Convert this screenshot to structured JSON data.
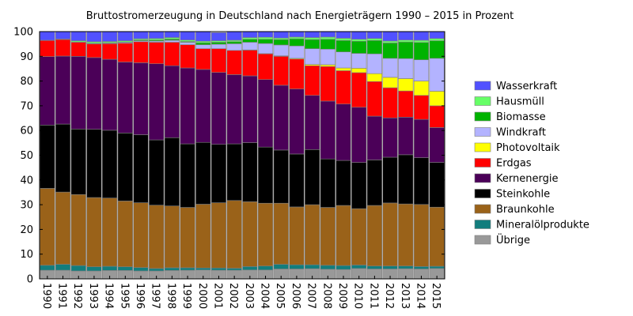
{
  "chart_data": {
    "type": "bar",
    "stacked": true,
    "title": "Bruttostromerzeugung in Deutschland nach Energieträgern 1990 – 2015 in Prozent",
    "xlabel": "",
    "ylabel": "",
    "ylim": [
      0,
      100
    ],
    "yticks": [
      0,
      10,
      20,
      30,
      40,
      50,
      60,
      70,
      80,
      90,
      100
    ],
    "grid": false,
    "legend_position": "right",
    "categories": [
      "1990",
      "1991",
      "1992",
      "1993",
      "1994",
      "1995",
      "1996",
      "1997",
      "1998",
      "1999",
      "2000",
      "2001",
      "2002",
      "2003",
      "2004",
      "2005",
      "2006",
      "2007",
      "2008",
      "2009",
      "2010",
      "2011",
      "2012",
      "2013",
      "2014",
      "2015"
    ],
    "series": [
      {
        "name": "Übrige",
        "color": "#999999",
        "values": [
          3.5,
          3.5,
          3.2,
          3.2,
          3.4,
          3.4,
          3.2,
          3.2,
          3.4,
          3.5,
          3.6,
          3.5,
          3.5,
          3.6,
          3.6,
          4.0,
          4.0,
          4.1,
          3.9,
          3.8,
          4.2,
          4.0,
          4.0,
          4.1,
          4.0,
          4.2
        ]
      },
      {
        "name": "Mineralölprodukte",
        "color": "#127d7d",
        "values": [
          2.0,
          2.4,
          2.2,
          1.7,
          1.7,
          1.5,
          1.4,
          1.0,
          1.1,
          1.0,
          0.8,
          0.9,
          0.8,
          1.4,
          1.6,
          1.9,
          1.7,
          1.6,
          1.6,
          1.6,
          1.4,
          1.2,
          1.2,
          1.1,
          1.0,
          0.9
        ]
      },
      {
        "name": "Braunkohle",
        "color": "#9a6219",
        "values": [
          31.1,
          29.2,
          28.7,
          28.0,
          27.6,
          26.6,
          26.2,
          25.6,
          25.0,
          24.4,
          25.8,
          26.4,
          27.4,
          26.2,
          25.4,
          24.7,
          23.4,
          24.3,
          23.4,
          24.3,
          22.8,
          24.5,
          25.5,
          25.1,
          25.1,
          23.9
        ]
      },
      {
        "name": "Steinkohle",
        "color": "#000000",
        "values": [
          25.6,
          27.5,
          26.5,
          27.6,
          27.4,
          27.5,
          27.5,
          26.4,
          27.6,
          25.7,
          25.0,
          23.6,
          22.9,
          23.9,
          22.7,
          21.5,
          21.4,
          22.3,
          19.6,
          18.2,
          18.7,
          18.4,
          18.5,
          19.9,
          18.9,
          18.1
        ]
      },
      {
        "name": "Kernenergie",
        "color": "#4b0058",
        "values": [
          27.7,
          27.5,
          29.4,
          29.0,
          28.7,
          28.7,
          29.1,
          30.8,
          29.1,
          30.7,
          29.5,
          29.1,
          28.0,
          27.0,
          27.3,
          26.2,
          26.3,
          21.9,
          23.4,
          22.8,
          22.3,
          17.7,
          15.9,
          15.2,
          15.5,
          14.1
        ]
      },
      {
        "name": "Erdgas",
        "color": "#ff0000",
        "values": [
          6.5,
          6.7,
          5.7,
          5.5,
          6.3,
          7.6,
          8.5,
          8.7,
          9.5,
          9.4,
          8.4,
          9.6,
          9.8,
          10.4,
          10.4,
          11.7,
          12.1,
          12.0,
          14.0,
          13.5,
          14.0,
          14.0,
          12.2,
          10.6,
          9.7,
          8.8
        ]
      },
      {
        "name": "Photovoltaik",
        "color": "#ffff00",
        "values": [
          0.0,
          0.0,
          0.0,
          0.0,
          0.0,
          0.0,
          0.0,
          0.0,
          0.0,
          0.0,
          0.0,
          0.0,
          0.0,
          0.1,
          0.1,
          0.2,
          0.3,
          0.5,
          0.7,
          1.1,
          1.8,
          3.2,
          4.2,
          5.0,
          5.8,
          5.9
        ]
      },
      {
        "name": "Windkraft",
        "color": "#b3b3ff",
        "values": [
          0.0,
          0.0,
          0.0,
          0.1,
          0.2,
          0.3,
          0.4,
          0.5,
          0.8,
          1.0,
          1.6,
          1.8,
          2.7,
          3.1,
          4.1,
          4.4,
          5.0,
          6.4,
          6.3,
          6.5,
          6.0,
          8.0,
          7.7,
          8.1,
          8.6,
          13.3
        ]
      },
      {
        "name": "Biomasse",
        "color": "#00b300",
        "values": [
          0.0,
          0.0,
          0.1,
          0.2,
          0.2,
          0.2,
          0.3,
          0.4,
          0.5,
          0.3,
          0.8,
          0.8,
          0.8,
          1.2,
          1.7,
          2.2,
          2.9,
          3.7,
          4.0,
          4.6,
          4.9,
          5.4,
          6.2,
          6.7,
          7.0,
          7.1
        ]
      },
      {
        "name": "Hausmüll",
        "color": "#66ff66",
        "values": [
          0.1,
          0.2,
          0.5,
          0.6,
          0.5,
          0.5,
          0.5,
          0.6,
          0.6,
          0.6,
          0.6,
          0.6,
          0.6,
          0.7,
          0.8,
          0.6,
          0.7,
          0.8,
          0.9,
          0.9,
          0.8,
          0.8,
          0.8,
          0.8,
          0.9,
          0.9
        ]
      },
      {
        "name": "Wasserkraft",
        "color": "#5151ff",
        "values": [
          3.5,
          3.0,
          3.7,
          4.1,
          4.0,
          3.7,
          3.9,
          2.8,
          2.4,
          3.4,
          3.9,
          3.3,
          3.5,
          3.4,
          3.6,
          3.2,
          3.2,
          2.4,
          2.6,
          2.7,
          3.1,
          2.8,
          3.8,
          3.4,
          3.5,
          2.8
        ]
      }
    ]
  }
}
